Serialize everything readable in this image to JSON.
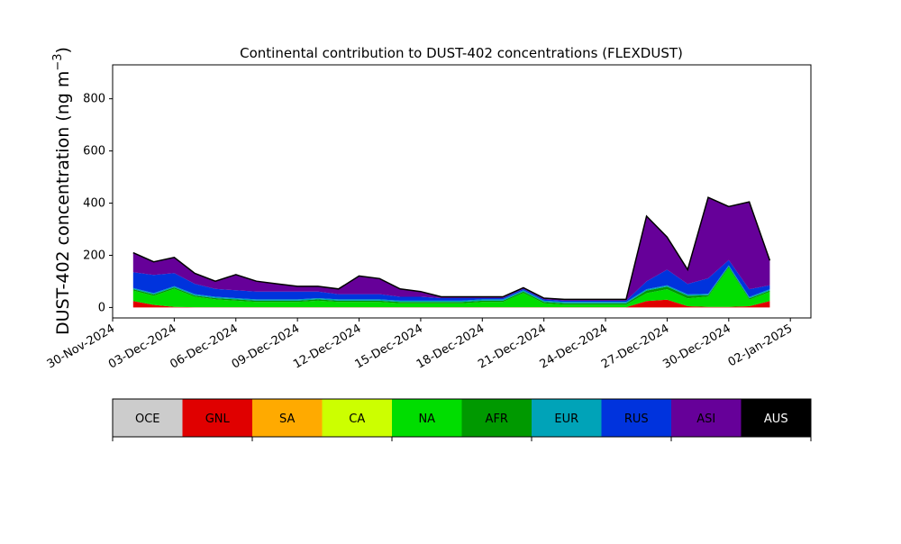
{
  "chart_data": {
    "type": "area",
    "title": "Continental contribution to DUST-402 concentrations (FLEXDUST)",
    "ylabel": "DUST-402 concentration (ng m",
    "ylabel_unit_exponent": "−3",
    "ylabel_close": ")",
    "xlim": [
      "2024-11-30",
      "2025-01-03"
    ],
    "ylim": [
      -40,
      930
    ],
    "grid": false,
    "x_ticks": [
      "30-Nov-2024",
      "03-Dec-2024",
      "06-Dec-2024",
      "09-Dec-2024",
      "12-Dec-2024",
      "15-Dec-2024",
      "18-Dec-2024",
      "21-Dec-2024",
      "24-Dec-2024",
      "27-Dec-2024",
      "30-Dec-2024",
      "02-Jan-2025"
    ],
    "y_ticks": [
      0,
      200,
      400,
      600,
      800
    ],
    "x": [
      "2024-12-01",
      "2024-12-02",
      "2024-12-03",
      "2024-12-04",
      "2024-12-05",
      "2024-12-06",
      "2024-12-07",
      "2024-12-08",
      "2024-12-09",
      "2024-12-10",
      "2024-12-11",
      "2024-12-12",
      "2024-12-13",
      "2024-12-14",
      "2024-12-15",
      "2024-12-16",
      "2024-12-17",
      "2024-12-18",
      "2024-12-19",
      "2024-12-20",
      "2024-12-21",
      "2024-12-22",
      "2024-12-23",
      "2024-12-24",
      "2024-12-25",
      "2024-12-26",
      "2024-12-27",
      "2024-12-28",
      "2024-12-29",
      "2024-12-30",
      "2024-12-31",
      "2025-01-01"
    ],
    "series": [
      {
        "name": "GNL",
        "color": "#e00000",
        "values": [
          25,
          10,
          2,
          1,
          1,
          1,
          1,
          1,
          1,
          1,
          1,
          1,
          1,
          1,
          1,
          1,
          1,
          1,
          1,
          1,
          1,
          1,
          1,
          1,
          1,
          25,
          30,
          5,
          2,
          2,
          5,
          25
        ]
      },
      {
        "name": "NA",
        "color": "#00dd00",
        "values": [
          40,
          35,
          70,
          40,
          30,
          25,
          20,
          20,
          20,
          25,
          20,
          20,
          20,
          15,
          15,
          15,
          15,
          20,
          20,
          55,
          15,
          10,
          10,
          10,
          10,
          30,
          40,
          30,
          40,
          150,
          25,
          35
        ]
      },
      {
        "name": "AFR",
        "color": "#009900",
        "values": [
          5,
          5,
          5,
          5,
          5,
          5,
          5,
          5,
          5,
          5,
          5,
          5,
          5,
          5,
          5,
          5,
          5,
          5,
          5,
          5,
          5,
          5,
          5,
          5,
          5,
          10,
          10,
          10,
          5,
          5,
          5,
          5
        ]
      },
      {
        "name": "EUR",
        "color": "#00a3b8",
        "values": [
          5,
          5,
          5,
          5,
          5,
          5,
          5,
          5,
          5,
          5,
          5,
          5,
          5,
          5,
          5,
          5,
          5,
          5,
          5,
          5,
          5,
          5,
          5,
          5,
          5,
          5,
          5,
          5,
          5,
          5,
          5,
          5
        ]
      },
      {
        "name": "RUS",
        "color": "#0033dd",
        "values": [
          60,
          70,
          50,
          40,
          30,
          30,
          30,
          30,
          30,
          25,
          20,
          20,
          20,
          15,
          15,
          10,
          10,
          5,
          5,
          5,
          5,
          5,
          5,
          5,
          5,
          30,
          60,
          40,
          60,
          20,
          30,
          15
        ]
      },
      {
        "name": "ASI",
        "color": "#660099",
        "values": [
          75,
          50,
          60,
          40,
          30,
          60,
          40,
          30,
          20,
          20,
          20,
          70,
          60,
          30,
          20,
          5,
          5,
          5,
          5,
          5,
          5,
          5,
          5,
          5,
          5,
          250,
          125,
          55,
          310,
          205,
          335,
          95
        ]
      }
    ],
    "legend": [
      "OCE",
      "GNL",
      "SA",
      "CA",
      "NA",
      "AFR",
      "EUR",
      "RUS",
      "ASI",
      "AUS"
    ],
    "legend_colors": [
      "#cccccc",
      "#e00000",
      "#ffaa00",
      "#ccff00",
      "#00dd00",
      "#009900",
      "#00a3b8",
      "#0033dd",
      "#660099",
      "#000000"
    ],
    "legend_placement": "bottom"
  }
}
